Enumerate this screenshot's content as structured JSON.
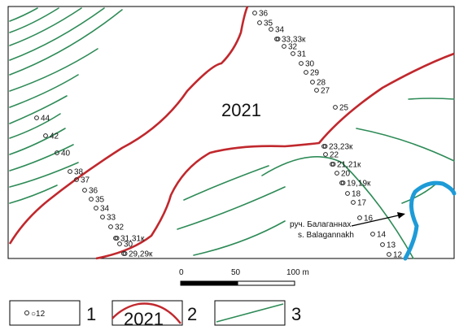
{
  "year_label": "2021",
  "stream": {
    "label_ru": "руч. Балаганнах",
    "label_en": "s. Balagannakh"
  },
  "scale": {
    "ticks": [
      "0",
      "50",
      "100 m"
    ]
  },
  "legend": [
    {
      "number": "1",
      "sample": "○12"
    },
    {
      "number": "2",
      "sample": "2021"
    },
    {
      "number": "3",
      "sample": ""
    }
  ],
  "colors": {
    "contour": "#2e8b57",
    "boundary": "#c0282d",
    "water": "#1e9bd7",
    "points": "#222222"
  },
  "points_upper": [
    "36",
    "35",
    "34",
    "33,33к",
    "32",
    "31",
    "30",
    "29",
    "28",
    "27",
    "25"
  ],
  "points_middle": [
    "23,23к",
    "22",
    "21,21к",
    "20",
    "19,19к",
    "18",
    "17",
    "16",
    "14",
    "13",
    "12"
  ],
  "points_left": [
    "44",
    "42",
    "40",
    "38",
    "37",
    "36",
    "35",
    "34",
    "33",
    "32",
    "31,31к",
    "30",
    "29,29к"
  ]
}
